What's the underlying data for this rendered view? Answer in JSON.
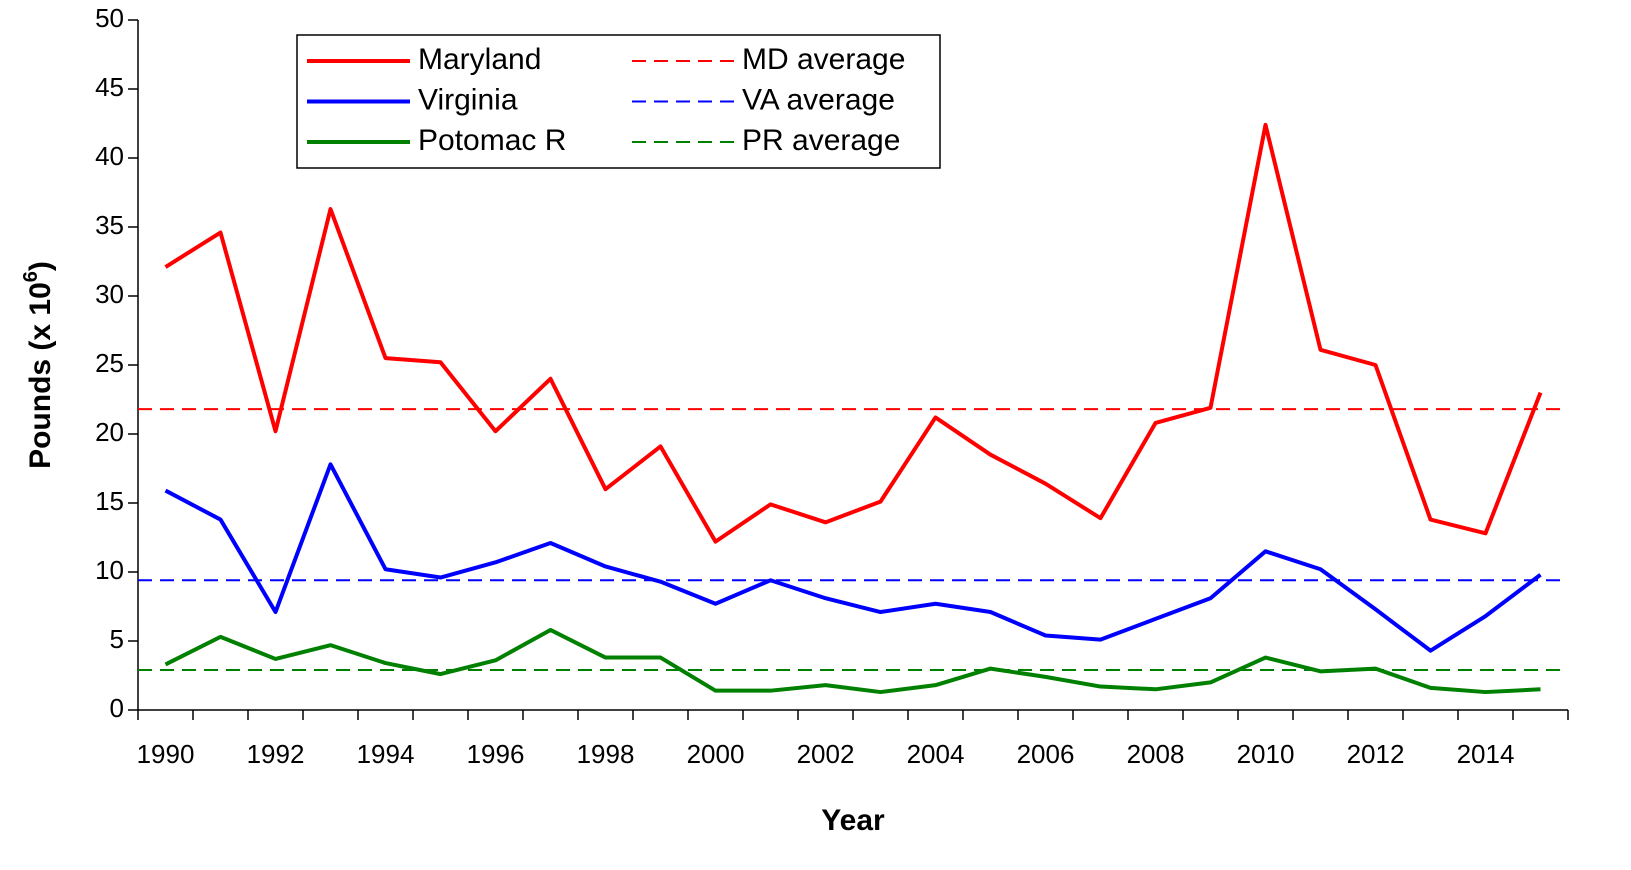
{
  "chart_data": {
    "type": "line",
    "categories": [
      "1990",
      null,
      "1992",
      null,
      "1994",
      null,
      "1996",
      null,
      "1998",
      null,
      "2000",
      null,
      "2002",
      null,
      "2004",
      null,
      "2006",
      null,
      "2008",
      null,
      "2010",
      null,
      "2012",
      null,
      "2014",
      null
    ],
    "series": [
      {
        "name": "Maryland",
        "color": "#ff0000",
        "values": [
          32.1,
          34.6,
          20.2,
          36.3,
          25.5,
          25.2,
          20.2,
          24.0,
          16.0,
          19.1,
          12.2,
          14.9,
          13.6,
          15.1,
          21.2,
          18.5,
          16.4,
          13.9,
          20.8,
          21.9,
          42.4,
          26.1,
          25.0,
          13.8,
          12.8,
          23.0
        ]
      },
      {
        "name": "Virginia",
        "color": "#0000ff",
        "values": [
          15.9,
          13.8,
          7.1,
          17.8,
          10.2,
          9.6,
          10.7,
          12.1,
          10.4,
          9.3,
          7.7,
          9.4,
          8.1,
          7.1,
          7.7,
          7.1,
          5.4,
          5.1,
          6.6,
          8.1,
          11.5,
          10.2,
          7.3,
          4.3,
          6.8,
          9.8
        ]
      },
      {
        "name": "Potomac R",
        "color": "#008000",
        "values": [
          3.3,
          5.3,
          3.7,
          4.7,
          3.4,
          2.6,
          3.6,
          5.8,
          3.8,
          3.8,
          1.4,
          1.4,
          1.8,
          1.3,
          1.8,
          3.0,
          2.4,
          1.7,
          1.5,
          2.0,
          3.8,
          2.8,
          3.0,
          1.6,
          1.3,
          1.5
        ]
      }
    ],
    "averages": [
      {
        "name": "MD average",
        "color": "#ff0000",
        "value": 21.8
      },
      {
        "name": "VA average",
        "color": "#0000ff",
        "value": 9.4
      },
      {
        "name": "PR average",
        "color": "#008000",
        "value": 2.9
      }
    ],
    "xlabel": "Year",
    "ylabel": "Pounds (x 10",
    "ylabel_exponent": "6",
    "ylabel_suffix": ")",
    "ylim": [
      0,
      50
    ],
    "yticks": [
      0,
      5,
      10,
      15,
      20,
      25,
      30,
      35,
      40,
      45,
      50
    ],
    "grid": false,
    "legend": "upper left"
  }
}
